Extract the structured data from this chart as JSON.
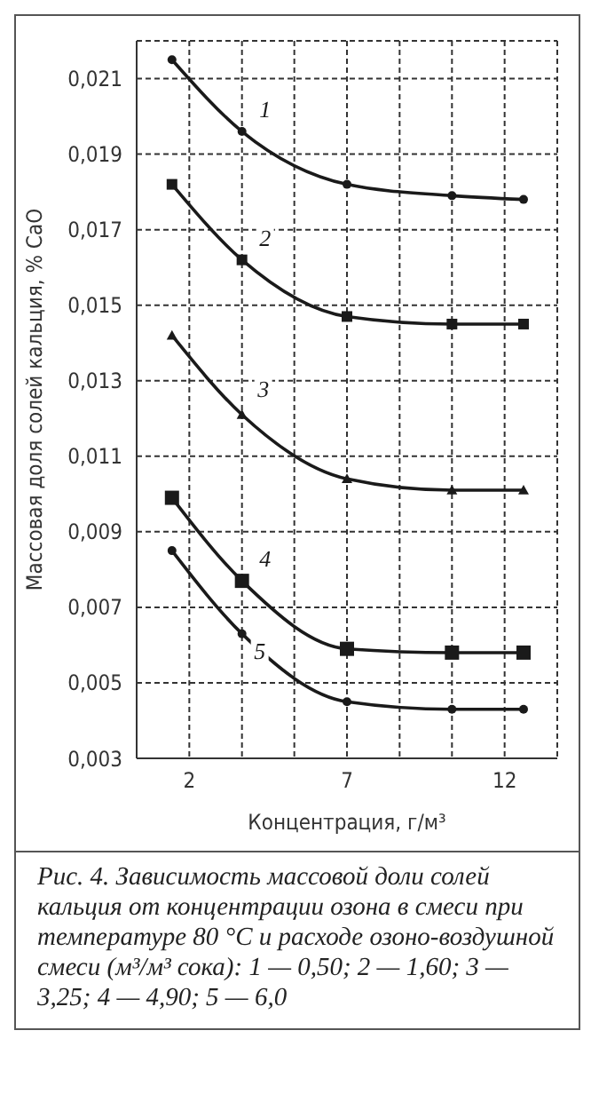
{
  "chart_data": {
    "type": "line",
    "xlabel": "Концентрация, г/м³",
    "ylabel": "Массовая доля солей кальция, % CaO",
    "x": [
      1.45,
      3.67,
      7,
      10.33,
      12.6
    ],
    "series": [
      {
        "name": "1",
        "color": "#1a1a1a",
        "marker": "circle",
        "values": [
          0.0215,
          0.0196,
          0.0182,
          0.0179,
          0.0178
        ]
      },
      {
        "name": "2",
        "color": "#1a1a1a",
        "marker": "square",
        "values": [
          0.0182,
          0.0162,
          0.0147,
          0.0145,
          0.0145
        ]
      },
      {
        "name": "3",
        "color": "#1a1a1a",
        "marker": "triangle",
        "values": [
          0.0142,
          0.0121,
          0.0104,
          0.0101,
          0.0101
        ]
      },
      {
        "name": "4",
        "color": "#1a1a1a",
        "marker": "square",
        "values": [
          0.0099,
          0.0077,
          0.0059,
          0.0058,
          0.0058
        ]
      },
      {
        "name": "5",
        "color": "#1a1a1a",
        "marker": "circle",
        "values": [
          0.0085,
          0.0063,
          0.0045,
          0.0043,
          0.0043
        ]
      }
    ],
    "xlim": [
      0.33,
      13.67
    ],
    "xticks": [
      {
        "value": 2,
        "label": "2"
      },
      {
        "value": 3.67,
        "label": null
      },
      {
        "value": 5.33,
        "label": null
      },
      {
        "value": 7,
        "label": "7"
      },
      {
        "value": 8.67,
        "label": null
      },
      {
        "value": 10.33,
        "label": null
      },
      {
        "value": 12,
        "label": "12"
      }
    ],
    "ylim": [
      0.003,
      0.022
    ],
    "yticks": [
      {
        "value": 0.003,
        "label": "0,003"
      },
      {
        "value": 0.005,
        "label": "0,005"
      },
      {
        "value": 0.007,
        "label": "0,007"
      },
      {
        "value": 0.009,
        "label": "0,009"
      },
      {
        "value": 0.011,
        "label": "0,011"
      },
      {
        "value": 0.013,
        "label": "0,013"
      },
      {
        "value": 0.015,
        "label": "0,015"
      },
      {
        "value": 0.017,
        "label": "0,017"
      },
      {
        "value": 0.019,
        "label": "0,019"
      },
      {
        "value": 0.021,
        "label": "0,021"
      }
    ],
    "grid": true,
    "line_style": "solid",
    "annotations": [
      "Рис. 4. Зависимость массовой доли солей кальция от концентрации озона в смеси при температуре 80 °С и расходе озоно-воздушной смеси (м³/м³ сока): 1 — 0,50; 2 — 1,60; 3 — 3,25; 4 — 4,90; 5 — 6,0"
    ]
  }
}
